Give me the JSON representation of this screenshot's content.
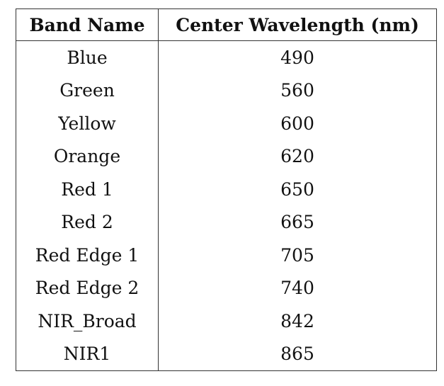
{
  "table": {
    "headers": [
      "Band Name",
      "Center Wavelength (nm)"
    ],
    "rows": [
      [
        "Blue",
        "490"
      ],
      [
        "Green",
        "560"
      ],
      [
        "Yellow",
        "600"
      ],
      [
        "Orange",
        "620"
      ],
      [
        "Red 1",
        "650"
      ],
      [
        "Red 2",
        "665"
      ],
      [
        "Red Edge 1",
        "705"
      ],
      [
        "Red Edge 2",
        "740"
      ],
      [
        "NIR_Broad",
        "842"
      ],
      [
        "NIR1",
        "865"
      ]
    ]
  }
}
